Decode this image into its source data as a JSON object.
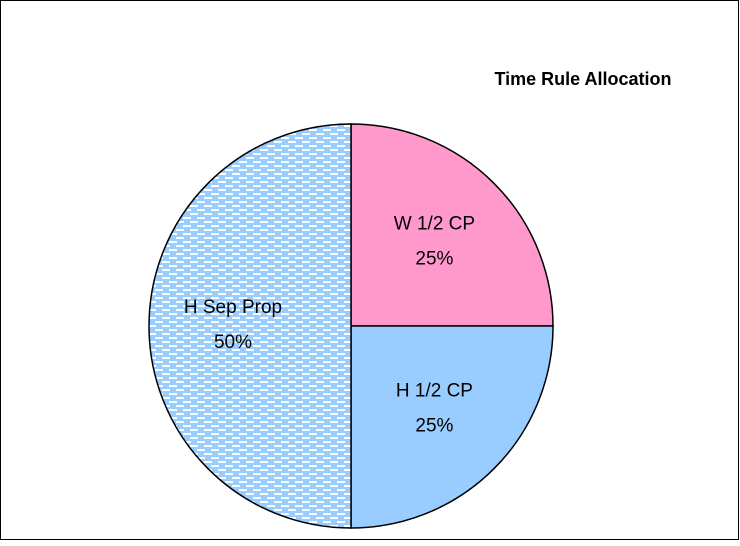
{
  "chart_data": {
    "type": "pie",
    "title": "Time Rule Allocation",
    "categories": [
      "W 1/2 CP",
      "H 1/2 CP",
      "H Sep Prop"
    ],
    "values": [
      25,
      25,
      50
    ],
    "value_labels": [
      "25%",
      "25%",
      "50%"
    ],
    "colors": [
      "#ff99cc",
      "#99ccff",
      "#99ccff"
    ],
    "patterns": [
      null,
      null,
      "dashes"
    ]
  }
}
